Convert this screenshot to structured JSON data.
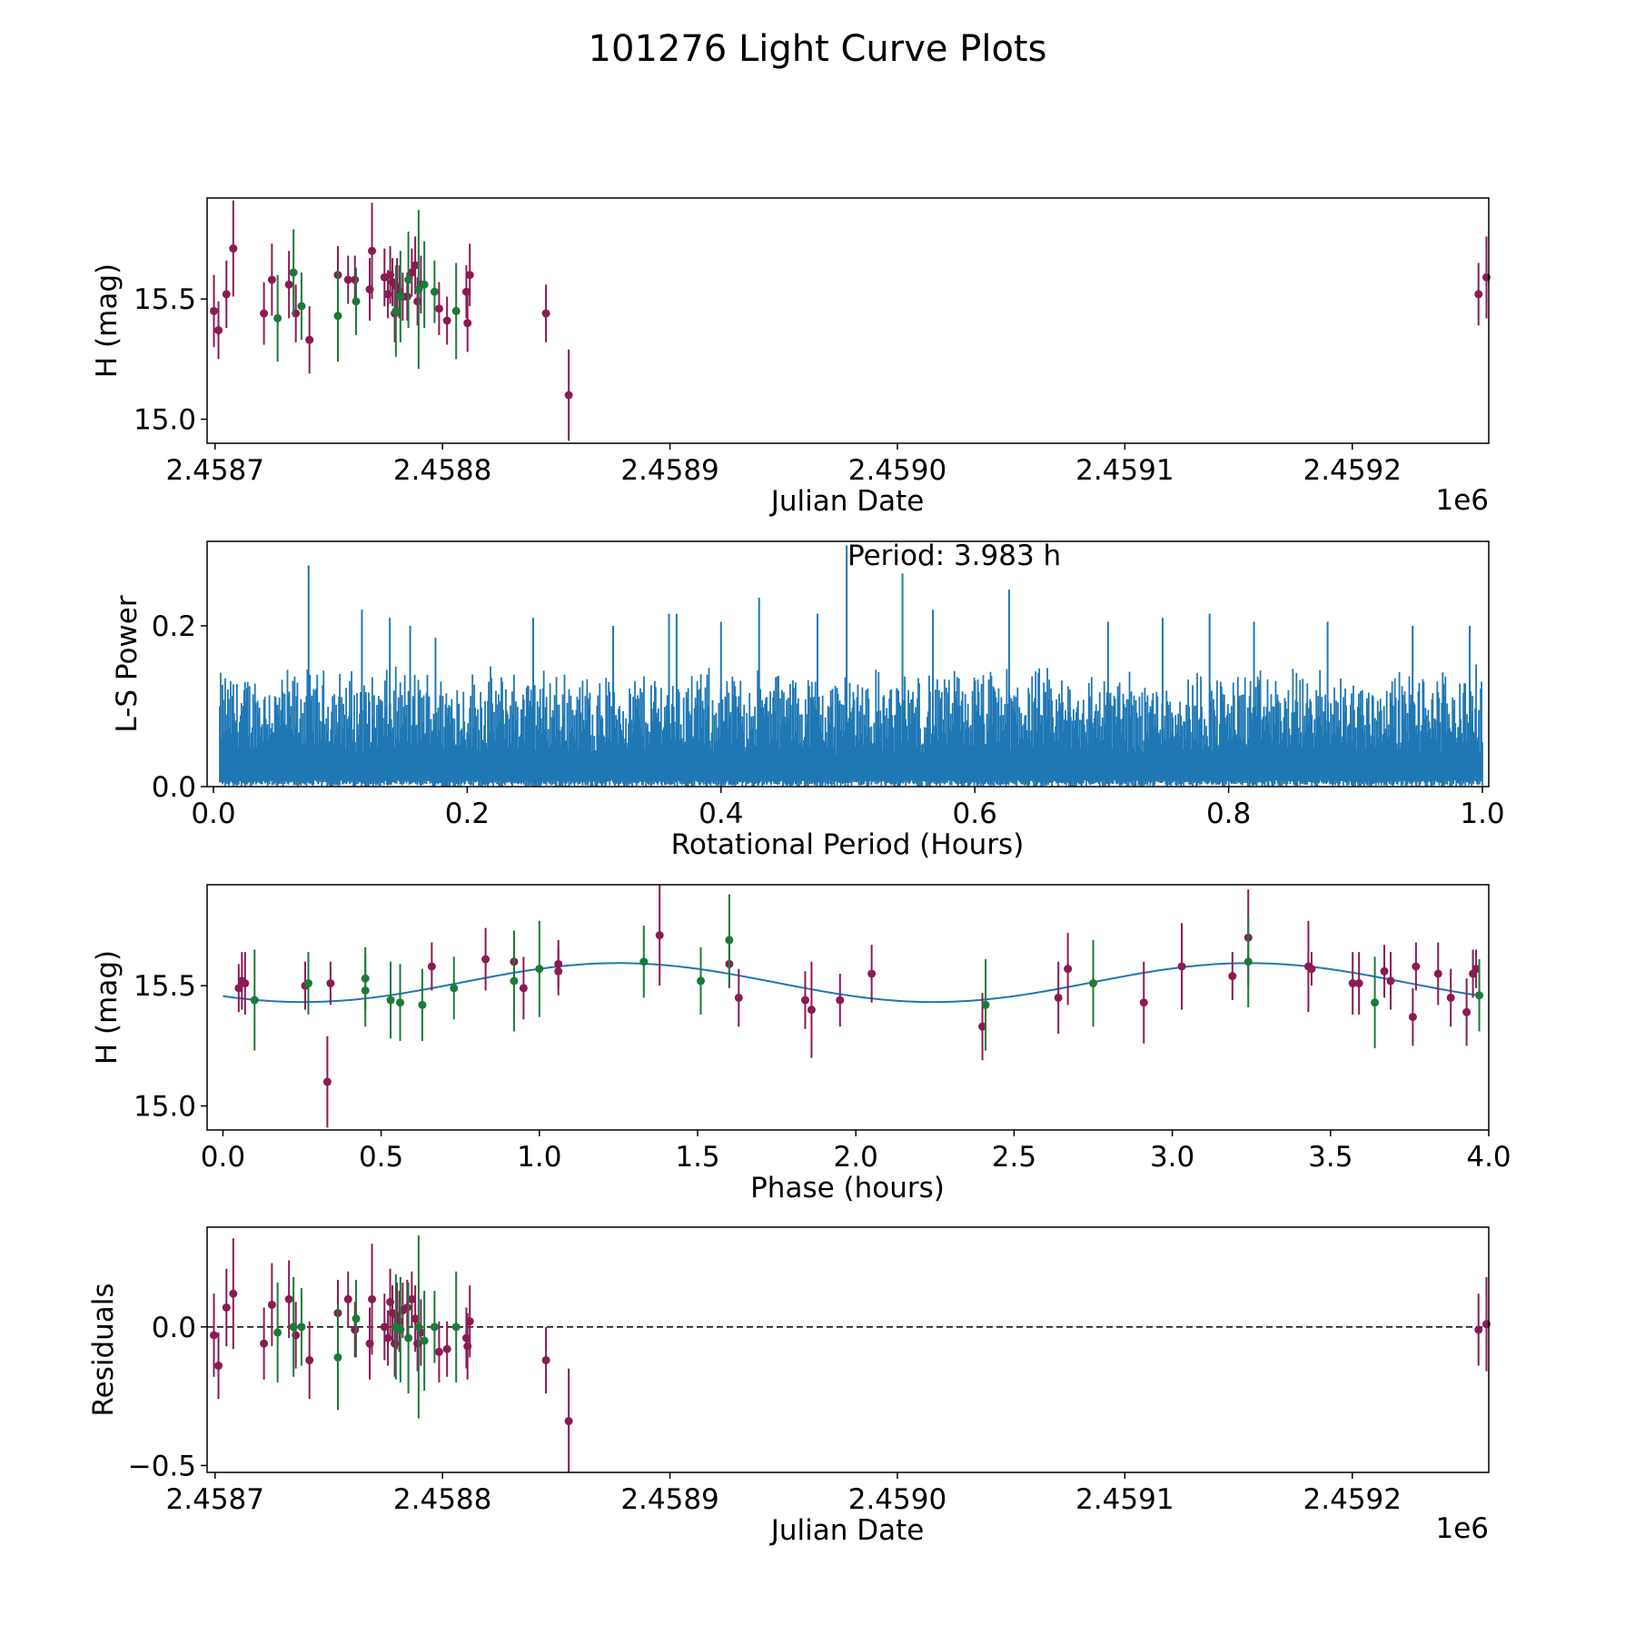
{
  "figure": {
    "title": "101276 Light Curve Plots"
  },
  "colors": {
    "red_series": "#8b1a55",
    "green_series": "#1b7a3a",
    "line_blue": "#1f77b4",
    "axis": "#000000"
  },
  "chart_data": [
    {
      "id": "light-curve",
      "type": "scatter",
      "title": "",
      "xlabel": "Julian Date",
      "ylabel": "H (mag)",
      "offset_label": "1e6",
      "xlim": [
        2458696.5,
        2459260
      ],
      "ylim": [
        14.9,
        15.92
      ],
      "xticks": [
        2458700,
        2458800,
        2458900,
        2459000,
        2459100,
        2459200
      ],
      "xtick_labels": [
        "2.4587",
        "2.4588",
        "2.4589",
        "2.4590",
        "2.4591",
        "2.4592"
      ],
      "yticks": [
        15.0,
        15.5
      ],
      "ytick_labels": [
        "15.0",
        "15.5"
      ],
      "series": [
        {
          "name": "red",
          "points": [
            [
              2458699.5,
              15.45,
              0.15
            ],
            [
              2458701.5,
              15.37,
              0.12
            ],
            [
              2458705.0,
              15.52,
              0.14
            ],
            [
              2458708.0,
              15.71,
              0.2
            ],
            [
              2458721.5,
              15.44,
              0.13
            ],
            [
              2458725.0,
              15.58,
              0.15
            ],
            [
              2458732.5,
              15.56,
              0.14
            ],
            [
              2458735.5,
              15.44,
              0.12
            ],
            [
              2458741.5,
              15.33,
              0.14
            ],
            [
              2458754.0,
              15.6,
              0.12
            ],
            [
              2458758.5,
              15.58,
              0.1
            ],
            [
              2458761.5,
              15.58,
              0.1
            ],
            [
              2458768.0,
              15.54,
              0.13
            ],
            [
              2458769.0,
              15.7,
              0.2
            ],
            [
              2458774.5,
              15.59,
              0.12
            ],
            [
              2458776.0,
              15.52,
              0.1
            ],
            [
              2458777.0,
              15.6,
              0.12
            ],
            [
              2458778.0,
              15.57,
              0.1
            ],
            [
              2458779.0,
              15.44,
              0.12
            ],
            [
              2458780.0,
              15.55,
              0.12
            ],
            [
              2458781.0,
              15.53,
              0.11
            ],
            [
              2458782.5,
              15.51,
              0.1
            ],
            [
              2458784.5,
              15.51,
              0.1
            ],
            [
              2458786.5,
              15.61,
              0.1
            ],
            [
              2458788.0,
              15.64,
              0.12
            ],
            [
              2458789.0,
              15.49,
              0.1
            ],
            [
              2458790.5,
              15.56,
              0.12
            ],
            [
              2458798.5,
              15.46,
              0.11
            ],
            [
              2458802.0,
              15.41,
              0.1
            ],
            [
              2458810.5,
              15.53,
              0.11
            ],
            [
              2458811.0,
              15.4,
              0.12
            ],
            [
              2458812.0,
              15.6,
              0.13
            ],
            [
              2458845.5,
              15.44,
              0.12
            ],
            [
              2458855.5,
              15.1,
              0.19
            ],
            [
              2459255.5,
              15.52,
              0.13
            ],
            [
              2459259.0,
              15.59,
              0.17
            ]
          ]
        },
        {
          "name": "green",
          "points": [
            [
              2458727.5,
              15.42,
              0.18
            ],
            [
              2458734.5,
              15.61,
              0.18
            ],
            [
              2458738.0,
              15.47,
              0.14
            ],
            [
              2458754.0,
              15.43,
              0.19
            ],
            [
              2458762.0,
              15.49,
              0.14
            ],
            [
              2458779.5,
              15.45,
              0.19
            ],
            [
              2458781.5,
              15.51,
              0.19
            ],
            [
              2458785.0,
              15.58,
              0.2
            ],
            [
              2458789.5,
              15.54,
              0.33
            ],
            [
              2458792.0,
              15.56,
              0.18
            ],
            [
              2458796.5,
              15.53,
              0.13
            ],
            [
              2458806.0,
              15.45,
              0.2
            ]
          ]
        }
      ]
    },
    {
      "id": "periodogram",
      "type": "line",
      "title": "",
      "xlabel": "Rotational Period (Hours)",
      "ylabel": "L-S Power",
      "annotation": "Period: 3.983 h",
      "xlim": [
        -0.005,
        1.005
      ],
      "ylim": [
        0,
        0.305
      ],
      "xticks": [
        0.0,
        0.2,
        0.4,
        0.6,
        0.8,
        1.0
      ],
      "xtick_labels": [
        "0.0",
        "0.2",
        "0.4",
        "0.6",
        "0.8",
        "1.0"
      ],
      "yticks": [
        0.0,
        0.2
      ],
      "ytick_labels": [
        "0.0",
        "0.2"
      ],
      "series": [
        {
          "name": "power",
          "band_floor": 0.0,
          "band_typical": 0.07,
          "sample_count": 1400,
          "peaks": [
            [
              0.075,
              0.275
            ],
            [
              0.117,
              0.22
            ],
            [
              0.139,
              0.21
            ],
            [
              0.155,
              0.2
            ],
            [
              0.175,
              0.185
            ],
            [
              0.252,
              0.21
            ],
            [
              0.315,
              0.2
            ],
            [
              0.359,
              0.215
            ],
            [
              0.365,
              0.215
            ],
            [
              0.4,
              0.205
            ],
            [
              0.43,
              0.235
            ],
            [
              0.476,
              0.215
            ],
            [
              0.499,
              0.3
            ],
            [
              0.543,
              0.265
            ],
            [
              0.567,
              0.22
            ],
            [
              0.627,
              0.245
            ],
            [
              0.705,
              0.205
            ],
            [
              0.748,
              0.21
            ],
            [
              0.785,
              0.215
            ],
            [
              0.82,
              0.205
            ],
            [
              0.878,
              0.205
            ],
            [
              0.945,
              0.2
            ],
            [
              0.99,
              0.2
            ]
          ]
        }
      ]
    },
    {
      "id": "phase-fold",
      "type": "scatter",
      "title": "",
      "xlabel": "Phase (hours)",
      "ylabel": "H (mag)",
      "xlim": [
        -0.05,
        4.0
      ],
      "ylim": [
        14.9,
        15.92
      ],
      "xticks": [
        0.0,
        0.5,
        1.0,
        1.5,
        2.0,
        2.5,
        3.0,
        3.5,
        4.0
      ],
      "xtick_labels": [
        "0.0",
        "0.5",
        "1.0",
        "1.5",
        "2.0",
        "2.5",
        "3.0",
        "3.5",
        "4.0"
      ],
      "yticks": [
        15.0,
        15.5
      ],
      "ytick_labels": [
        "15.0",
        "15.5"
      ],
      "model": {
        "name": "fit",
        "mean": 15.513,
        "amplitude": 0.081,
        "period": 1.9915,
        "peak_phase": 1.25,
        "x_range": [
          0.0,
          3.983
        ]
      },
      "series": [
        {
          "name": "red",
          "points": [
            [
              0.05,
              15.49,
              0.1
            ],
            [
              0.06,
              15.52,
              0.12
            ],
            [
              0.07,
              15.51,
              0.13
            ],
            [
              0.26,
              15.5,
              0.1
            ],
            [
              0.33,
              15.1,
              0.19
            ],
            [
              0.34,
              15.51,
              0.09
            ],
            [
              0.66,
              15.58,
              0.1
            ],
            [
              0.83,
              15.61,
              0.13
            ],
            [
              0.92,
              15.6,
              0.1
            ],
            [
              0.95,
              15.49,
              0.13
            ],
            [
              1.06,
              15.56,
              0.1
            ],
            [
              1.06,
              15.59,
              0.1
            ],
            [
              1.38,
              15.71,
              0.21
            ],
            [
              1.6,
              15.59,
              0.1
            ],
            [
              1.63,
              15.45,
              0.12
            ],
            [
              1.84,
              15.44,
              0.12
            ],
            [
              1.86,
              15.4,
              0.2
            ],
            [
              1.95,
              15.44,
              0.11
            ],
            [
              2.05,
              15.55,
              0.12
            ],
            [
              2.4,
              15.33,
              0.14
            ],
            [
              2.64,
              15.45,
              0.15
            ],
            [
              2.67,
              15.57,
              0.15
            ],
            [
              2.91,
              15.43,
              0.17
            ],
            [
              3.03,
              15.58,
              0.18
            ],
            [
              3.19,
              15.54,
              0.1
            ],
            [
              3.24,
              15.7,
              0.2
            ],
            [
              3.43,
              15.58,
              0.19
            ],
            [
              3.44,
              15.57,
              0.07
            ],
            [
              3.57,
              15.51,
              0.13
            ],
            [
              3.59,
              15.51,
              0.13
            ],
            [
              3.67,
              15.56,
              0.11
            ],
            [
              3.69,
              15.52,
              0.12
            ],
            [
              3.76,
              15.37,
              0.12
            ],
            [
              3.77,
              15.58,
              0.1
            ],
            [
              3.84,
              15.55,
              0.13
            ],
            [
              3.88,
              15.45,
              0.12
            ],
            [
              3.93,
              15.39,
              0.14
            ],
            [
              3.95,
              15.55,
              0.1
            ],
            [
              3.96,
              15.57,
              0.08
            ]
          ]
        },
        {
          "name": "green",
          "points": [
            [
              0.1,
              15.44,
              0.21
            ],
            [
              0.27,
              15.51,
              0.13
            ],
            [
              0.45,
              15.48,
              0.15
            ],
            [
              0.45,
              15.53,
              0.13
            ],
            [
              0.53,
              15.44,
              0.16
            ],
            [
              0.56,
              15.43,
              0.16
            ],
            [
              0.63,
              15.42,
              0.15
            ],
            [
              0.73,
              15.49,
              0.13
            ],
            [
              0.92,
              15.52,
              0.21
            ],
            [
              1.0,
              15.57,
              0.2
            ],
            [
              1.33,
              15.6,
              0.15
            ],
            [
              1.51,
              15.52,
              0.14
            ],
            [
              1.6,
              15.69,
              0.19
            ],
            [
              2.41,
              15.42,
              0.19
            ],
            [
              2.75,
              15.51,
              0.18
            ],
            [
              3.24,
              15.6,
              0.19
            ],
            [
              3.64,
              15.43,
              0.19
            ],
            [
              3.97,
              15.46,
              0.15
            ]
          ]
        }
      ]
    },
    {
      "id": "residuals",
      "type": "scatter",
      "title": "",
      "xlabel": "Julian Date",
      "ylabel": "Residuals",
      "offset_label": "1e6",
      "xlim": [
        2458696.5,
        2459260
      ],
      "ylim": [
        -0.525,
        0.36
      ],
      "xticks": [
        2458700,
        2458800,
        2458900,
        2459000,
        2459100,
        2459200
      ],
      "xtick_labels": [
        "2.4587",
        "2.4588",
        "2.4589",
        "2.4590",
        "2.4591",
        "2.4592"
      ],
      "yticks": [
        -0.5,
        0.0
      ],
      "ytick_labels": [
        "−0.5",
        "0.0"
      ],
      "reference_line": 0.0,
      "series": [
        {
          "name": "red",
          "points": [
            [
              2458699.5,
              -0.03,
              0.15
            ],
            [
              2458701.5,
              -0.14,
              0.12
            ],
            [
              2458705.0,
              0.07,
              0.14
            ],
            [
              2458708.0,
              0.12,
              0.2
            ],
            [
              2458721.5,
              -0.06,
              0.13
            ],
            [
              2458725.0,
              0.08,
              0.15
            ],
            [
              2458732.5,
              0.1,
              0.14
            ],
            [
              2458735.5,
              -0.03,
              0.12
            ],
            [
              2458741.5,
              -0.12,
              0.14
            ],
            [
              2458754.0,
              0.05,
              0.12
            ],
            [
              2458758.5,
              0.1,
              0.1
            ],
            [
              2458761.5,
              -0.01,
              0.1
            ],
            [
              2458768.0,
              -0.06,
              0.13
            ],
            [
              2458769.0,
              0.1,
              0.2
            ],
            [
              2458774.5,
              0.0,
              0.12
            ],
            [
              2458776.0,
              -0.04,
              0.1
            ],
            [
              2458777.0,
              0.09,
              0.12
            ],
            [
              2458778.0,
              0.05,
              0.1
            ],
            [
              2458779.0,
              -0.06,
              0.12
            ],
            [
              2458780.0,
              0.04,
              0.12
            ],
            [
              2458781.0,
              0.02,
              0.11
            ],
            [
              2458782.5,
              0.06,
              0.1
            ],
            [
              2458784.5,
              0.07,
              0.1
            ],
            [
              2458786.5,
              0.1,
              0.1
            ],
            [
              2458788.0,
              0.03,
              0.12
            ],
            [
              2458789.0,
              -0.06,
              0.1
            ],
            [
              2458790.5,
              -0.02,
              0.12
            ],
            [
              2458798.5,
              -0.09,
              0.11
            ],
            [
              2458802.0,
              -0.08,
              0.1
            ],
            [
              2458810.5,
              -0.04,
              0.11
            ],
            [
              2458811.0,
              -0.07,
              0.12
            ],
            [
              2458812.0,
              0.02,
              0.13
            ],
            [
              2458845.5,
              -0.12,
              0.12
            ],
            [
              2458855.5,
              -0.34,
              0.19
            ],
            [
              2459255.5,
              -0.01,
              0.13
            ],
            [
              2459259.0,
              0.01,
              0.17
            ]
          ]
        },
        {
          "name": "green",
          "points": [
            [
              2458727.5,
              -0.02,
              0.18
            ],
            [
              2458734.5,
              0.0,
              0.18
            ],
            [
              2458738.0,
              0.0,
              0.14
            ],
            [
              2458754.0,
              -0.11,
              0.19
            ],
            [
              2458762.0,
              0.03,
              0.14
            ],
            [
              2458779.5,
              0.0,
              0.19
            ],
            [
              2458781.5,
              -0.01,
              0.19
            ],
            [
              2458785.0,
              -0.04,
              0.2
            ],
            [
              2458789.5,
              0.0,
              0.33
            ],
            [
              2458792.0,
              -0.05,
              0.18
            ],
            [
              2458796.5,
              0.0,
              0.13
            ],
            [
              2458806.0,
              0.0,
              0.2
            ]
          ]
        }
      ]
    }
  ]
}
